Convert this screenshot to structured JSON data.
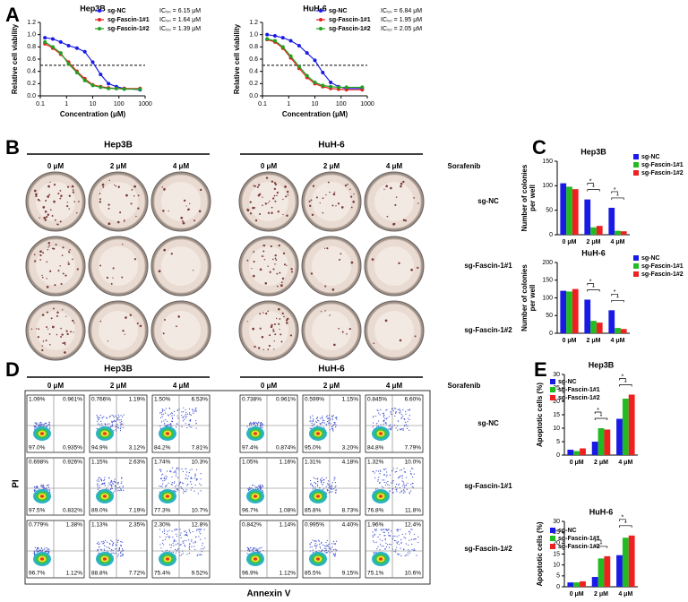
{
  "panel_labels": [
    "A",
    "B",
    "C",
    "D",
    "E"
  ],
  "chart_data": [
    {
      "type": "line",
      "title": "Hep3B",
      "xlabel": "Concentration (μM)",
      "ylabel": "Relative cell viability",
      "log_x": true,
      "x": [
        0.15,
        0.3,
        0.6,
        1.2,
        2.5,
        5,
        10,
        20,
        40,
        80,
        160,
        640
      ],
      "xlim": [
        0.1,
        1000
      ],
      "xticks": [
        0.1,
        1,
        10,
        100,
        1000
      ],
      "ylim": [
        0,
        1.2
      ],
      "yticks": [
        {
          "value": 0,
          "label": "0.0"
        },
        {
          "value": 0.2,
          "label": "0.2"
        },
        {
          "value": 0.4,
          "label": "0.4"
        },
        {
          "value": 0.6,
          "label": "0.6"
        },
        {
          "value": 0.8,
          "label": "0.8"
        },
        {
          "value": 1,
          "label": "1.0"
        },
        {
          "value": 1.2,
          "label": "1.2"
        }
      ],
      "reference_line": 0.5,
      "series": [
        {
          "name": "sg-NC",
          "color": "#1a1ae6",
          "ic50_label": "IC₅₀ = 6.15 μM",
          "values": [
            0.95,
            0.93,
            0.88,
            0.82,
            0.78,
            0.72,
            0.55,
            0.35,
            0.2,
            0.15,
            0.12,
            0.1
          ]
        },
        {
          "name": "sg-Fascin-1#1",
          "color": "#e62020",
          "ic50_label": "IC₅₀ = 1.64 μM",
          "values": [
            0.85,
            0.78,
            0.68,
            0.55,
            0.4,
            0.28,
            0.18,
            0.15,
            0.13,
            0.12,
            0.12,
            0.12
          ]
        },
        {
          "name": "sg-Fascin-1#2",
          "color": "#20a020",
          "ic50_label": "IC₅₀ = 1.39 μM",
          "values": [
            0.88,
            0.8,
            0.7,
            0.52,
            0.38,
            0.25,
            0.17,
            0.14,
            0.12,
            0.12,
            0.11,
            0.11
          ]
        }
      ]
    },
    {
      "type": "line",
      "title": "HuH-6",
      "xlabel": "Concentration (μM)",
      "ylabel": "Relative cell viability",
      "log_x": true,
      "x": [
        0.15,
        0.3,
        0.6,
        1.2,
        2.5,
        5,
        10,
        20,
        40,
        80,
        160,
        640
      ],
      "xlim": [
        0.1,
        1000
      ],
      "xticks": [
        0.1,
        1,
        10,
        100,
        1000
      ],
      "ylim": [
        0,
        1.2
      ],
      "yticks": [
        {
          "value": 0,
          "label": "0.0"
        },
        {
          "value": 0.2,
          "label": "0.2"
        },
        {
          "value": 0.4,
          "label": "0.4"
        },
        {
          "value": 0.6,
          "label": "0.6"
        },
        {
          "value": 0.8,
          "label": "0.8"
        },
        {
          "value": 1,
          "label": "1.0"
        },
        {
          "value": 1.2,
          "label": "1.2"
        }
      ],
      "reference_line": 0.5,
      "series": [
        {
          "name": "sg-NC",
          "color": "#1a1ae6",
          "ic50_label": "IC₅₀ = 6.84 μM",
          "values": [
            1.0,
            0.98,
            0.95,
            0.9,
            0.82,
            0.7,
            0.58,
            0.38,
            0.22,
            0.15,
            0.12,
            0.12
          ]
        },
        {
          "name": "sg-Fascin-1#1",
          "color": "#e62020",
          "ic50_label": "IC₅₀ = 1.95 μM",
          "values": [
            0.92,
            0.88,
            0.78,
            0.62,
            0.45,
            0.3,
            0.2,
            0.15,
            0.12,
            0.11,
            0.1,
            0.1
          ]
        },
        {
          "name": "sg-Fascin-1#2",
          "color": "#20a020",
          "ic50_label": "IC₅₀ = 2.05 μM",
          "values": [
            0.93,
            0.9,
            0.8,
            0.65,
            0.48,
            0.33,
            0.22,
            0.17,
            0.15,
            0.14,
            0.14,
            0.14
          ]
        }
      ]
    },
    {
      "type": "bar",
      "title": "Hep3B",
      "ylabel": [
        "Number of colonies",
        "per well"
      ],
      "categories": [
        "0 μM",
        "2 μM",
        "4 μM"
      ],
      "ylim": [
        0,
        150
      ],
      "yticks": [
        0,
        50,
        100,
        150
      ],
      "significance_marker": "*",
      "significant_categories": [
        1,
        2
      ],
      "series": [
        {
          "name": "sg-NC",
          "color": "#1a1ae6",
          "values": [
            105,
            72,
            55
          ]
        },
        {
          "name": "sg-Fascin-1#1",
          "color": "#22bb22",
          "values": [
            98,
            15,
            8
          ]
        },
        {
          "name": "sg-Fascin-1#2",
          "color": "#ee2020",
          "values": [
            93,
            18,
            7
          ]
        }
      ]
    },
    {
      "type": "bar",
      "title": "HuH-6",
      "ylabel": [
        "Number of colonies",
        "per well"
      ],
      "categories": [
        "0 μM",
        "2 μM",
        "4 μM"
      ],
      "ylim": [
        0,
        200
      ],
      "yticks": [
        0,
        50,
        100,
        150,
        200
      ],
      "significance_marker": "*",
      "significant_categories": [
        1,
        2
      ],
      "series": [
        {
          "name": "sg-NC",
          "color": "#1a1ae6",
          "values": [
            120,
            95,
            65
          ]
        },
        {
          "name": "sg-Fascin-1#1",
          "color": "#22bb22",
          "values": [
            118,
            35,
            15
          ]
        },
        {
          "name": "sg-Fascin-1#2",
          "color": "#ee2020",
          "values": [
            125,
            30,
            12
          ]
        }
      ]
    },
    {
      "type": "bar",
      "title": "Hep3B",
      "ylabel": [
        "Apoptotic cells (%)"
      ],
      "categories": [
        "0 μM",
        "2 μM",
        "4 μM"
      ],
      "ylim": [
        0,
        30
      ],
      "yticks": [
        0,
        5,
        10,
        15,
        20,
        25,
        30
      ],
      "significance_marker": "*",
      "significant_categories": [
        1,
        2
      ],
      "series": [
        {
          "name": "sg-NC",
          "color": "#1a1ae6",
          "values": [
            2,
            5,
            13.5
          ]
        },
        {
          "name": "sg-Fascin-1#1",
          "color": "#22bb22",
          "values": [
            1.5,
            10,
            21
          ]
        },
        {
          "name": "sg-Fascin-1#2",
          "color": "#ee2020",
          "values": [
            2.5,
            9.5,
            22.5
          ]
        }
      ]
    },
    {
      "type": "bar",
      "title": "HuH-6",
      "ylabel": [
        "Apoptotic cells (%)"
      ],
      "categories": [
        "0 μM",
        "2 μM",
        "4 μM"
      ],
      "ylim": [
        0,
        30
      ],
      "yticks": [
        0,
        5,
        10,
        15,
        20,
        25,
        30
      ],
      "significance_marker": "*",
      "significant_categories": [
        1,
        2
      ],
      "series": [
        {
          "name": "sg-NC",
          "color": "#1a1ae6",
          "values": [
            2,
            4.5,
            14.5
          ]
        },
        {
          "name": "sg-Fascin-1#1",
          "color": "#22bb22",
          "values": [
            2,
            13,
            22.5
          ]
        },
        {
          "name": "sg-Fascin-1#2",
          "color": "#ee2020",
          "values": [
            2.5,
            14,
            23.5
          ]
        }
      ]
    }
  ],
  "dish_panel": {
    "groups": [
      "Hep3B",
      "HuH-6"
    ],
    "doses": [
      "0 μM",
      "2 μM",
      "4 μM"
    ],
    "treatment": "Sorafenib",
    "rows": [
      "sg-NC",
      "sg-Fascin-1#1",
      "sg-Fascin-1#2"
    ]
  },
  "flow_panel": {
    "groups": [
      "Hep3B",
      "HuH-6"
    ],
    "doses": [
      "0 μM",
      "2 μM",
      "4 μM"
    ],
    "treatment": "Sorafenib",
    "rows": [
      "sg-NC",
      "sg-Fascin-1#1",
      "sg-Fascin-1#2"
    ],
    "y_label": "PI",
    "x_label": "Annexin V",
    "quadrants": [
      [
        [
          "1.09%",
          "0.961%",
          "97.0%",
          "0.935%"
        ],
        [
          "0.766%",
          "1.19%",
          "94.9%",
          "3.12%"
        ],
        [
          "1.50%",
          "6.53%",
          "84.2%",
          "7.81%"
        ],
        [
          "0.738%",
          "0.961%",
          "97.4%",
          "0.874%"
        ],
        [
          "0.599%",
          "1.15%",
          "95.0%",
          "3.20%"
        ],
        [
          "0.845%",
          "6.60%",
          "84.8%",
          "7.79%"
        ]
      ],
      [
        [
          "0.698%",
          "0.926%",
          "97.5%",
          "0.832%"
        ],
        [
          "1.15%",
          "2.63%",
          "89.0%",
          "7.19%"
        ],
        [
          "1.74%",
          "10.3%",
          "77.3%",
          "10.7%"
        ],
        [
          "1.05%",
          "1.16%",
          "96.7%",
          "1.08%"
        ],
        [
          "1.31%",
          "4.18%",
          "85.8%",
          "8.73%"
        ],
        [
          "1.32%",
          "10.0%",
          "76.8%",
          "11.8%"
        ]
      ],
      [
        [
          "0.779%",
          "1.38%",
          "96.7%",
          "1.12%"
        ],
        [
          "1.13%",
          "2.35%",
          "88.8%",
          "7.72%"
        ],
        [
          "2.30%",
          "12.8%",
          "75.4%",
          "9.52%"
        ],
        [
          "0.842%",
          "1.14%",
          "96.9%",
          "1.12%"
        ],
        [
          "0.995%",
          "4.40%",
          "85.5%",
          "9.15%"
        ],
        [
          "1.96%",
          "12.4%",
          "75.1%",
          "10.6%"
        ]
      ]
    ]
  }
}
